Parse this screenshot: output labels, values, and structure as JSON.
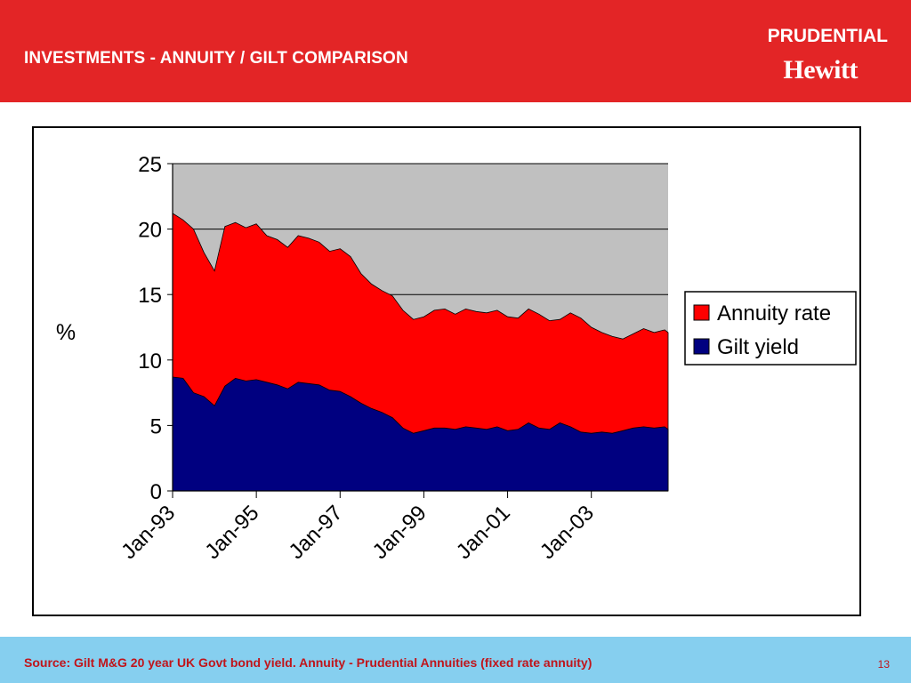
{
  "header": {
    "title": "INVESTMENTS - ANNUITY / GILT COMPARISON",
    "brand_top": "PRUDENTIAL",
    "brand_bottom": "Hewitt"
  },
  "footer": {
    "source": "Source: Gilt M&G 20 year UK Govt bond yield.  Annuity - Prudential Annuities (fixed rate annuity)",
    "page_number": "13"
  },
  "colors": {
    "header_background": "#e32526",
    "footer_background": "#86cfef",
    "annuity_rate": "#ff0000",
    "gilt_yield": "#000080",
    "plot_background": "#c0c0c0"
  },
  "chart_data": {
    "type": "area",
    "ylabel": "%",
    "xlabel": "",
    "ylim": [
      0,
      25
    ],
    "yticks": [
      0,
      5,
      10,
      15,
      20,
      25
    ],
    "xlim": [
      "1993-01",
      "2004-11"
    ],
    "xtick_labels": [
      "Jan-93",
      "Jan-95",
      "Jan-97",
      "Jan-99",
      "Jan-01",
      "Jan-03"
    ],
    "grid": "horizontal",
    "legend_position": "right",
    "x": [
      "1993-01",
      "1993-04",
      "1993-07",
      "1993-10",
      "1994-01",
      "1994-04",
      "1994-07",
      "1994-10",
      "1995-01",
      "1995-04",
      "1995-07",
      "1995-10",
      "1996-01",
      "1996-04",
      "1996-07",
      "1996-10",
      "1997-01",
      "1997-04",
      "1997-07",
      "1997-10",
      "1998-01",
      "1998-04",
      "1998-07",
      "1998-10",
      "1999-01",
      "1999-04",
      "1999-07",
      "1999-10",
      "2000-01",
      "2000-04",
      "2000-07",
      "2000-10",
      "2001-01",
      "2001-04",
      "2001-07",
      "2001-10",
      "2002-01",
      "2002-04",
      "2002-07",
      "2002-10",
      "2003-01",
      "2003-04",
      "2003-07",
      "2003-10",
      "2004-01",
      "2004-04",
      "2004-07",
      "2004-10",
      "2004-11"
    ],
    "series": [
      {
        "name": "Annuity rate",
        "values": [
          21.2,
          20.7,
          20.0,
          18.2,
          16.8,
          20.2,
          20.5,
          20.1,
          20.4,
          19.5,
          19.2,
          18.6,
          19.5,
          19.3,
          19.0,
          18.3,
          18.5,
          17.9,
          16.6,
          15.8,
          15.3,
          14.9,
          13.8,
          13.1,
          13.3,
          13.8,
          13.9,
          13.5,
          13.9,
          13.7,
          13.6,
          13.8,
          13.3,
          13.2,
          13.9,
          13.5,
          13.0,
          13.1,
          13.6,
          13.2,
          12.5,
          12.1,
          11.8,
          11.6,
          12.0,
          12.4,
          12.1,
          12.3,
          12.1
        ]
      },
      {
        "name": "Gilt yield",
        "values": [
          8.7,
          8.6,
          7.5,
          7.2,
          6.5,
          8.0,
          8.6,
          8.4,
          8.5,
          8.3,
          8.1,
          7.8,
          8.3,
          8.2,
          8.1,
          7.7,
          7.6,
          7.2,
          6.7,
          6.3,
          6.0,
          5.6,
          4.8,
          4.4,
          4.6,
          4.8,
          4.8,
          4.7,
          4.9,
          4.8,
          4.7,
          4.9,
          4.6,
          4.7,
          5.2,
          4.8,
          4.7,
          5.2,
          4.9,
          4.5,
          4.4,
          4.5,
          4.4,
          4.6,
          4.8,
          4.9,
          4.8,
          4.9,
          4.7
        ]
      }
    ]
  }
}
